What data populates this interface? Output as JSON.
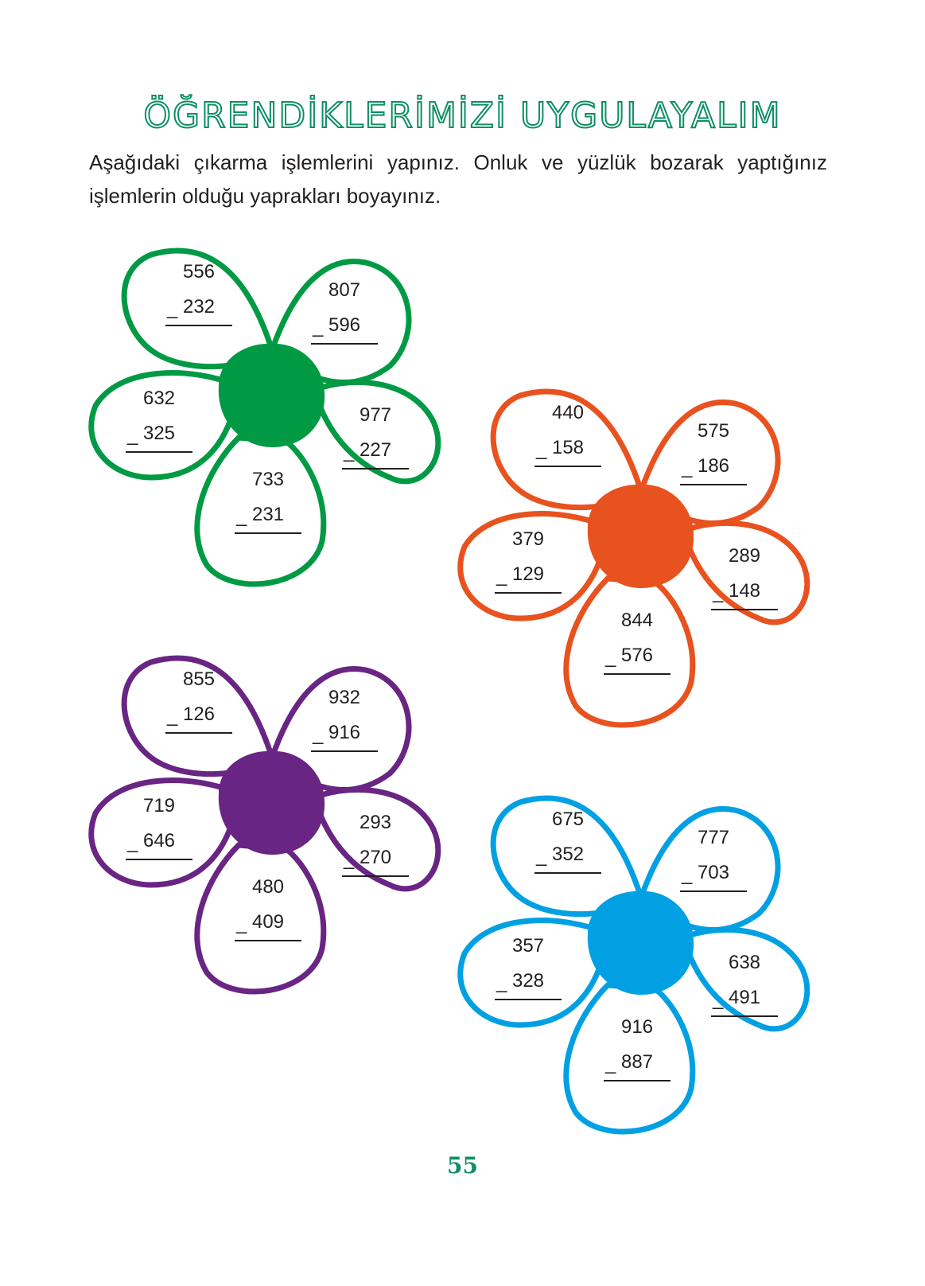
{
  "title": "ÖĞRENDİKLERİMİZİ UYGULAYALIM",
  "instructions": "Aşağıdaki çıkarma işlemlerini yapınız. Onluk ve yüzlük bozarak yaptığınız işlemlerin olduğu yaprakları boyayınız.",
  "minus_sign": "_",
  "flowers": [
    {
      "color": "#009a44",
      "problems": [
        {
          "minuend": "556",
          "subtrahend": "232"
        },
        {
          "minuend": "807",
          "subtrahend": "596"
        },
        {
          "minuend": "632",
          "subtrahend": "325"
        },
        {
          "minuend": "977",
          "subtrahend": "227"
        },
        {
          "minuend": "733",
          "subtrahend": "231"
        }
      ]
    },
    {
      "color": "#e8521f",
      "problems": [
        {
          "minuend": "440",
          "subtrahend": "158"
        },
        {
          "minuend": "575",
          "subtrahend": "186"
        },
        {
          "minuend": "379",
          "subtrahend": "129"
        },
        {
          "minuend": "289",
          "subtrahend": "148"
        },
        {
          "minuend": "844",
          "subtrahend": "576"
        }
      ]
    },
    {
      "color": "#692583",
      "problems": [
        {
          "minuend": "855",
          "subtrahend": "126"
        },
        {
          "minuend": "932",
          "subtrahend": "916"
        },
        {
          "minuend": "719",
          "subtrahend": "646"
        },
        {
          "minuend": "293",
          "subtrahend": "270"
        },
        {
          "minuend": "480",
          "subtrahend": "409"
        }
      ]
    },
    {
      "color": "#00a0e3",
      "problems": [
        {
          "minuend": "675",
          "subtrahend": "352"
        },
        {
          "minuend": "777",
          "subtrahend": "703"
        },
        {
          "minuend": "357",
          "subtrahend": "328"
        },
        {
          "minuend": "638",
          "subtrahend": "491"
        },
        {
          "minuend": "916",
          "subtrahend": "887"
        }
      ]
    }
  ],
  "page_number": "55"
}
